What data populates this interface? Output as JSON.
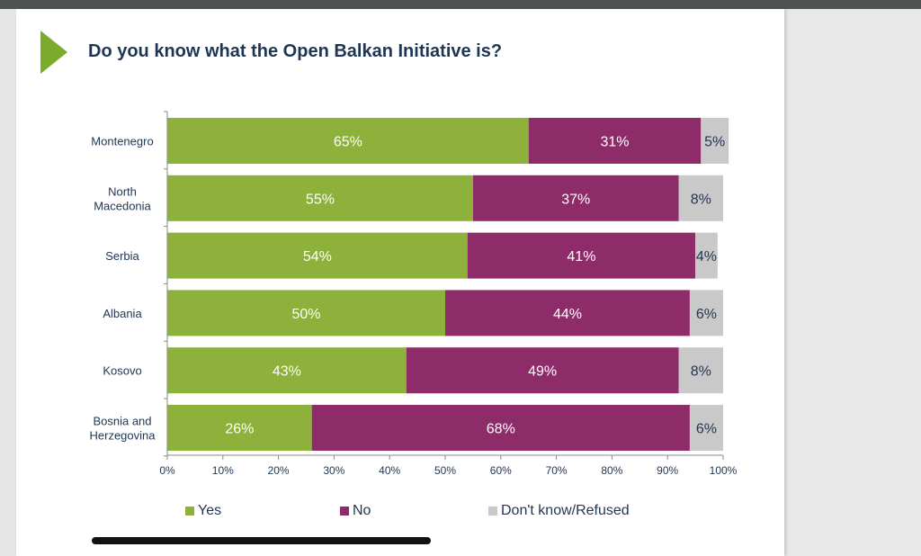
{
  "title": "Do you know what the Open Balkan Initiative is?",
  "colors": {
    "yes": "#8db13b",
    "no": "#8e2c6a",
    "dk": "#c9c9c9",
    "accent": "#7aab2c"
  },
  "chart_data": {
    "type": "bar",
    "orientation": "horizontal",
    "stacked": true,
    "title": "Do you know what the Open Balkan Initiative is?",
    "categories": [
      [
        "Montenegro"
      ],
      [
        "North",
        "Macedonia"
      ],
      [
        "Serbia"
      ],
      [
        "Albania"
      ],
      [
        "Kosovo"
      ],
      [
        "Bosnia and",
        "Herzegovina"
      ]
    ],
    "series": [
      {
        "name": "Yes",
        "values": [
          65,
          55,
          54,
          50,
          43,
          26
        ],
        "labels": [
          "65%",
          "55%",
          "54%",
          "50%",
          "43%",
          "26%"
        ]
      },
      {
        "name": "No",
        "values": [
          31,
          37,
          41,
          44,
          49,
          68
        ],
        "labels": [
          "31%",
          "37%",
          "41%",
          "44%",
          "49%",
          "68%"
        ]
      },
      {
        "name": "Don't know/Refused",
        "values": [
          5,
          8,
          4,
          6,
          8,
          6
        ],
        "labels": [
          "5%",
          "8%",
          "4%",
          "6%",
          "8%",
          "6%"
        ]
      }
    ],
    "xlim": [
      0,
      100
    ],
    "xticks": [
      "0%",
      "10%",
      "20%",
      "30%",
      "40%",
      "50%",
      "60%",
      "70%",
      "80%",
      "90%",
      "100%"
    ],
    "legend_position": "bottom",
    "grid": false
  },
  "legend": [
    {
      "label": "Yes",
      "color": "#8db13b"
    },
    {
      "label": "No",
      "color": "#8e2c6a"
    },
    {
      "label": "Don't know/Refused",
      "color": "#c9c9c9"
    }
  ]
}
